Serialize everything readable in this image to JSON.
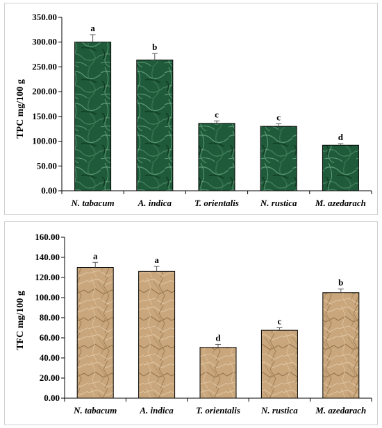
{
  "chart_data": [
    {
      "type": "bar",
      "ylabel": "TPC mg/100 g",
      "categories": [
        "N. tabacum",
        "A. indica",
        "T. orientalis",
        "N. rustica",
        "M. azedarach"
      ],
      "values": [
        300,
        264,
        136,
        130,
        92
      ],
      "errors": [
        15,
        13,
        5,
        5,
        3
      ],
      "significance": [
        "a",
        "b",
        "c",
        "c",
        "d"
      ],
      "ylim": [
        0,
        350
      ],
      "yticks": [
        0,
        50,
        100,
        150,
        200,
        250,
        300,
        350
      ],
      "ytick_labels": [
        "0.00",
        "50.00",
        "100.00",
        "150.00",
        "200.00",
        "250.00",
        "300.00",
        "350.00"
      ],
      "bar_color": "#1e5a38",
      "bar_texture": "green marbled",
      "grid": false
    },
    {
      "type": "bar",
      "ylabel": "TFC mg/100 g",
      "categories": [
        "N. tabacum",
        "A. indica",
        "T. orientalis",
        "N. rustica",
        "M. azedarach"
      ],
      "values": [
        130,
        126,
        50.5,
        67.5,
        105
      ],
      "errors": [
        5,
        5,
        3,
        2.5,
        3.5
      ],
      "significance": [
        "a",
        "a",
        "d",
        "c",
        "b"
      ],
      "ylim": [
        0,
        160
      ],
      "yticks": [
        0,
        20,
        40,
        60,
        80,
        100,
        120,
        140,
        160
      ],
      "ytick_labels": [
        "0.00",
        "20.00",
        "40.00",
        "60.00",
        "80.00",
        "100.00",
        "120.00",
        "140.00",
        "160.00"
      ],
      "bar_color": "#c8a67c",
      "bar_texture": "crumpled paper",
      "grid": false
    }
  ]
}
